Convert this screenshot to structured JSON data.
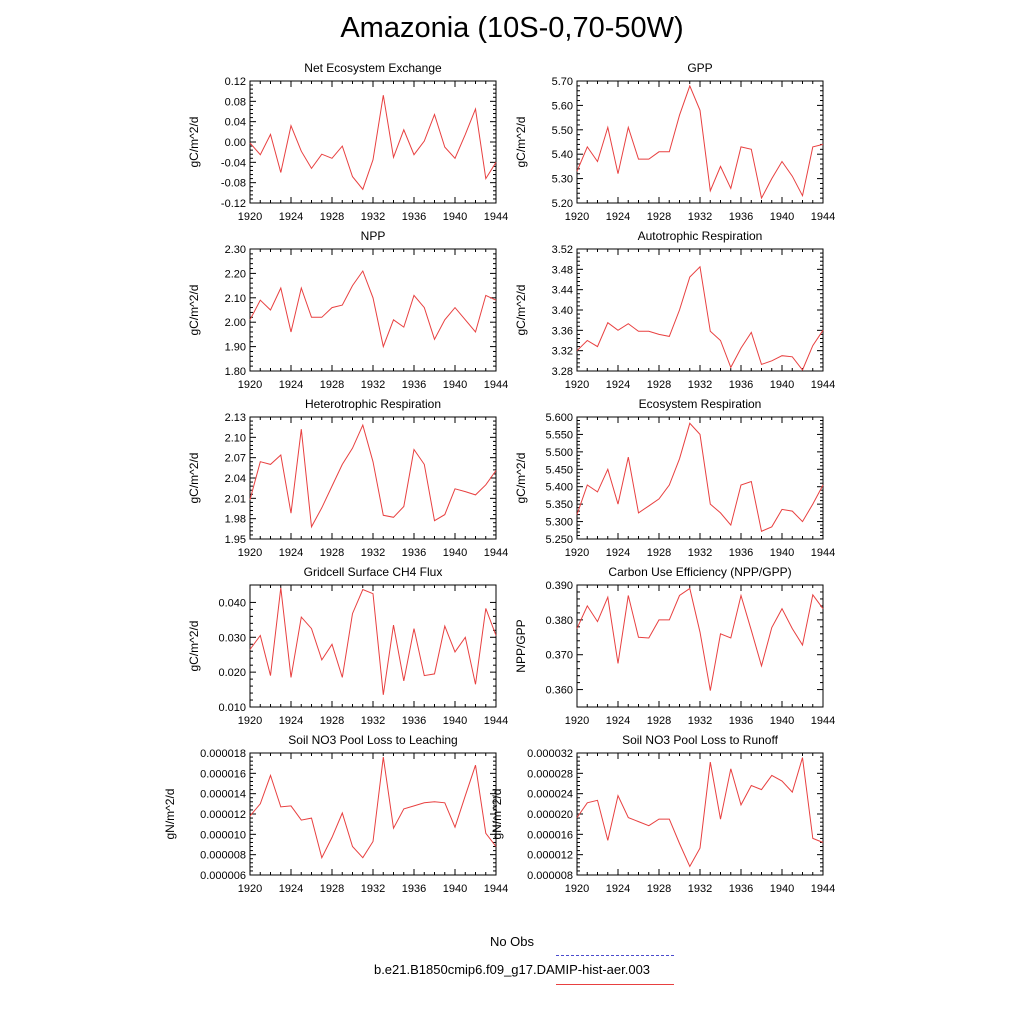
{
  "page_title": "Amazonia (10S-0,70-50W)",
  "legend": {
    "obs_label": "No Obs",
    "obs_color": "#4a4acd",
    "case_label": "b.e21.B1850cmip6.f09_g17.DAMIP-hist-aer.003",
    "case_color": "#e84040"
  },
  "chart_data": [
    {
      "type": "line",
      "title": "Net Ecosystem Exchange",
      "ylabel": "gC/m^2/d",
      "xlim": [
        1920,
        1944
      ],
      "ylim": [
        -0.12,
        0.12
      ],
      "xticks": [
        1920,
        1924,
        1928,
        1932,
        1936,
        1940,
        1944
      ],
      "yticks": [
        "-0.12",
        "-0.08",
        "-0.04",
        "0.00",
        "0.04",
        "0.08",
        "0.12"
      ],
      "series": [
        {
          "color": "#e84040",
          "x": [
            1920,
            1921,
            1922,
            1923,
            1924,
            1925,
            1926,
            1927,
            1928,
            1929,
            1930,
            1931,
            1932,
            1933,
            1934,
            1935,
            1936,
            1937,
            1938,
            1939,
            1940,
            1941,
            1942,
            1943,
            1944
          ],
          "values": [
            -0.002,
            -0.025,
            0.015,
            -0.06,
            0.032,
            -0.018,
            -0.052,
            -0.024,
            -0.032,
            -0.008,
            -0.068,
            -0.093,
            -0.035,
            0.092,
            -0.03,
            0.024,
            -0.025,
            0.002,
            0.054,
            -0.01,
            -0.032,
            0.015,
            0.065,
            -0.072,
            -0.04
          ]
        }
      ]
    },
    {
      "type": "line",
      "title": "GPP",
      "ylabel": "gC/m^2/d",
      "xlim": [
        1920,
        1944
      ],
      "ylim": [
        5.2,
        5.7
      ],
      "xticks": [
        1920,
        1924,
        1928,
        1932,
        1936,
        1940,
        1944
      ],
      "yticks": [
        "5.20",
        "5.30",
        "5.40",
        "5.50",
        "5.60",
        "5.70"
      ],
      "series": [
        {
          "color": "#e84040",
          "x": [
            1920,
            1921,
            1922,
            1923,
            1924,
            1925,
            1926,
            1927,
            1928,
            1929,
            1930,
            1931,
            1932,
            1933,
            1934,
            1935,
            1936,
            1937,
            1938,
            1939,
            1940,
            1941,
            1942,
            1943,
            1944
          ],
          "values": [
            5.33,
            5.43,
            5.37,
            5.51,
            5.32,
            5.51,
            5.38,
            5.38,
            5.41,
            5.41,
            5.56,
            5.68,
            5.58,
            5.25,
            5.35,
            5.26,
            5.43,
            5.42,
            5.22,
            5.3,
            5.37,
            5.31,
            5.23,
            5.43,
            5.44
          ]
        }
      ]
    },
    {
      "type": "line",
      "title": "NPP",
      "ylabel": "gC/m^2/d",
      "xlim": [
        1920,
        1944
      ],
      "ylim": [
        1.8,
        2.3
      ],
      "xticks": [
        1920,
        1924,
        1928,
        1932,
        1936,
        1940,
        1944
      ],
      "yticks": [
        "1.80",
        "1.90",
        "2.00",
        "2.10",
        "2.20",
        "2.30"
      ],
      "series": [
        {
          "color": "#e84040",
          "x": [
            1920,
            1921,
            1922,
            1923,
            1924,
            1925,
            1926,
            1927,
            1928,
            1929,
            1930,
            1931,
            1932,
            1933,
            1934,
            1935,
            1936,
            1937,
            1938,
            1939,
            1940,
            1941,
            1942,
            1943,
            1944
          ],
          "values": [
            2.01,
            2.09,
            2.05,
            2.14,
            1.96,
            2.14,
            2.02,
            2.02,
            2.06,
            2.07,
            2.15,
            2.21,
            2.1,
            1.9,
            2.01,
            1.98,
            2.11,
            2.06,
            1.93,
            2.01,
            2.06,
            2.01,
            1.96,
            2.11,
            2.09
          ]
        }
      ]
    },
    {
      "type": "line",
      "title": "Autotrophic Respiration",
      "ylabel": "gC/m^2/d",
      "xlim": [
        1920,
        1944
      ],
      "ylim": [
        3.28,
        3.52
      ],
      "xticks": [
        1920,
        1924,
        1928,
        1932,
        1936,
        1940,
        1944
      ],
      "yticks": [
        "3.28",
        "3.32",
        "3.36",
        "3.40",
        "3.44",
        "3.48",
        "3.52"
      ],
      "series": [
        {
          "color": "#e84040",
          "x": [
            1920,
            1921,
            1922,
            1923,
            1924,
            1925,
            1926,
            1927,
            1928,
            1929,
            1930,
            1931,
            1932,
            1933,
            1934,
            1935,
            1936,
            1937,
            1938,
            1939,
            1940,
            1941,
            1942,
            1943,
            1944
          ],
          "values": [
            3.32,
            3.34,
            3.328,
            3.375,
            3.36,
            3.373,
            3.358,
            3.358,
            3.352,
            3.348,
            3.4,
            3.465,
            3.485,
            3.358,
            3.34,
            3.287,
            3.325,
            3.356,
            3.293,
            3.3,
            3.31,
            3.308,
            3.282,
            3.33,
            3.36
          ]
        }
      ]
    },
    {
      "type": "line",
      "title": "Heterotrophic Respiration",
      "ylabel": "gC/m^2/d",
      "xlim": [
        1920,
        1944
      ],
      "ylim": [
        1.95,
        2.13
      ],
      "xticks": [
        1920,
        1924,
        1928,
        1932,
        1936,
        1940,
        1944
      ],
      "yticks": [
        "1.95",
        "1.98",
        "2.01",
        "2.04",
        "2.07",
        "2.10",
        "2.13"
      ],
      "series": [
        {
          "color": "#e84040",
          "x": [
            1920,
            1921,
            1922,
            1923,
            1924,
            1925,
            1926,
            1927,
            1928,
            1929,
            1930,
            1931,
            1932,
            1933,
            1934,
            1935,
            1936,
            1937,
            1938,
            1939,
            1940,
            1941,
            1942,
            1943,
            1944
          ],
          "values": [
            2.008,
            2.064,
            2.06,
            2.074,
            1.988,
            2.112,
            1.968,
            1.996,
            2.028,
            2.06,
            2.084,
            2.118,
            2.064,
            1.985,
            1.982,
            1.998,
            2.082,
            2.06,
            1.977,
            1.986,
            2.024,
            2.02,
            2.015,
            2.03,
            2.051
          ]
        }
      ]
    },
    {
      "type": "line",
      "title": "Ecosystem Respiration",
      "ylabel": "gC/m^2/d",
      "xlim": [
        1920,
        1944
      ],
      "ylim": [
        5.25,
        5.6
      ],
      "xticks": [
        1920,
        1924,
        1928,
        1932,
        1936,
        1940,
        1944
      ],
      "yticks": [
        "5.250",
        "5.300",
        "5.350",
        "5.400",
        "5.450",
        "5.500",
        "5.550",
        "5.600"
      ],
      "series": [
        {
          "color": "#e84040",
          "x": [
            1920,
            1921,
            1922,
            1923,
            1924,
            1925,
            1926,
            1927,
            1928,
            1929,
            1930,
            1931,
            1932,
            1933,
            1934,
            1935,
            1936,
            1937,
            1938,
            1939,
            1940,
            1941,
            1942,
            1943,
            1944
          ],
          "values": [
            5.32,
            5.405,
            5.385,
            5.45,
            5.35,
            5.485,
            5.325,
            5.345,
            5.365,
            5.405,
            5.48,
            5.582,
            5.55,
            5.35,
            5.325,
            5.29,
            5.405,
            5.415,
            5.272,
            5.285,
            5.335,
            5.33,
            5.3,
            5.35,
            5.405
          ]
        }
      ]
    },
    {
      "type": "line",
      "title": "Gridcell Surface CH4 Flux",
      "ylabel": "gC/m^2/d",
      "xlim": [
        1920,
        1944
      ],
      "ylim": [
        0.01,
        0.045
      ],
      "xticks": [
        1920,
        1924,
        1928,
        1932,
        1936,
        1940,
        1944
      ],
      "yticks": [
        "0.010",
        "0.020",
        "0.030",
        "0.040"
      ],
      "series": [
        {
          "color": "#e84040",
          "x": [
            1920,
            1921,
            1922,
            1923,
            1924,
            1925,
            1926,
            1927,
            1928,
            1929,
            1930,
            1931,
            1932,
            1933,
            1934,
            1935,
            1936,
            1937,
            1938,
            1939,
            1940,
            1941,
            1942,
            1943,
            1944
          ],
          "values": [
            0.0265,
            0.0305,
            0.019,
            0.0442,
            0.0185,
            0.0358,
            0.0325,
            0.0235,
            0.028,
            0.0185,
            0.0368,
            0.0437,
            0.0425,
            0.0135,
            0.0335,
            0.0175,
            0.0325,
            0.019,
            0.0195,
            0.0332,
            0.0258,
            0.03,
            0.0165,
            0.0383,
            0.0305
          ]
        }
      ]
    },
    {
      "type": "line",
      "title": "Carbon Use Efficiency (NPP/GPP)",
      "ylabel": "NPP/GPP",
      "xlim": [
        1920,
        1944
      ],
      "ylim": [
        0.355,
        0.39
      ],
      "xticks": [
        1920,
        1924,
        1928,
        1932,
        1936,
        1940,
        1944
      ],
      "yticks": [
        "0.360",
        "0.370",
        "0.380",
        "0.390"
      ],
      "series": [
        {
          "color": "#e84040",
          "x": [
            1920,
            1921,
            1922,
            1923,
            1924,
            1925,
            1926,
            1927,
            1928,
            1929,
            1930,
            1931,
            1932,
            1933,
            1934,
            1935,
            1936,
            1937,
            1938,
            1939,
            1940,
            1941,
            1942,
            1943,
            1944
          ],
          "values": [
            0.3775,
            0.384,
            0.3795,
            0.3865,
            0.3675,
            0.387,
            0.375,
            0.3748,
            0.38,
            0.38,
            0.387,
            0.389,
            0.3765,
            0.3597,
            0.376,
            0.3748,
            0.387,
            0.377,
            0.3668,
            0.3778,
            0.3832,
            0.3775,
            0.3728,
            0.3872,
            0.3832
          ]
        }
      ]
    },
    {
      "type": "line",
      "title": "Soil NO3 Pool Loss to Leaching",
      "ylabel": "gN/m^2/d",
      "xlim": [
        1920,
        1944
      ],
      "ylim": [
        6e-06,
        1.8e-05
      ],
      "xticks": [
        1920,
        1924,
        1928,
        1932,
        1936,
        1940,
        1944
      ],
      "yticks": [
        "0.000006",
        "0.000008",
        "0.000010",
        "0.000012",
        "0.000014",
        "0.000016",
        "0.000018"
      ],
      "series": [
        {
          "color": "#e84040",
          "x": [
            1920,
            1921,
            1922,
            1923,
            1924,
            1925,
            1926,
            1927,
            1928,
            1929,
            1930,
            1931,
            1932,
            1933,
            1934,
            1935,
            1936,
            1937,
            1938,
            1939,
            1940,
            1941,
            1942,
            1943,
            1944
          ],
          "values": [
            1.18e-05,
            1.3e-05,
            1.58e-05,
            1.27e-05,
            1.28e-05,
            1.14e-05,
            1.16e-05,
            7.7e-06,
            9.7e-06,
            1.21e-05,
            8.8e-06,
            7.7e-06,
            9.3e-06,
            1.76e-05,
            1.06e-05,
            1.25e-05,
            1.28e-05,
            1.31e-05,
            1.32e-05,
            1.31e-05,
            1.07e-05,
            1.38e-05,
            1.68e-05,
            1.01e-05,
            8.8e-06
          ]
        }
      ]
    },
    {
      "type": "line",
      "title": "Soil NO3 Pool Loss to Runoff",
      "ylabel": "gN/m^2/d",
      "xlim": [
        1920,
        1944
      ],
      "ylim": [
        8e-06,
        3.2e-05
      ],
      "xticks": [
        1920,
        1924,
        1928,
        1932,
        1936,
        1940,
        1944
      ],
      "yticks": [
        "0.000008",
        "0.000012",
        "0.000016",
        "0.000020",
        "0.000024",
        "0.000028",
        "0.000032"
      ],
      "series": [
        {
          "color": "#e84040",
          "x": [
            1920,
            1921,
            1922,
            1923,
            1924,
            1925,
            1926,
            1927,
            1928,
            1929,
            1930,
            1931,
            1932,
            1933,
            1934,
            1935,
            1936,
            1937,
            1938,
            1939,
            1940,
            1941,
            1942,
            1943,
            1944
          ],
          "values": [
            1.93e-05,
            2.22e-05,
            2.27e-05,
            1.48e-05,
            2.36e-05,
            1.93e-05,
            1.85e-05,
            1.77e-05,
            1.9e-05,
            1.9e-05,
            1.42e-05,
            9.7e-06,
            1.33e-05,
            3.02e-05,
            1.9e-05,
            2.89e-05,
            2.18e-05,
            2.56e-05,
            2.48e-05,
            2.76e-05,
            2.65e-05,
            2.43e-05,
            3.11e-05,
            1.52e-05,
            1.44e-05
          ]
        }
      ]
    }
  ]
}
